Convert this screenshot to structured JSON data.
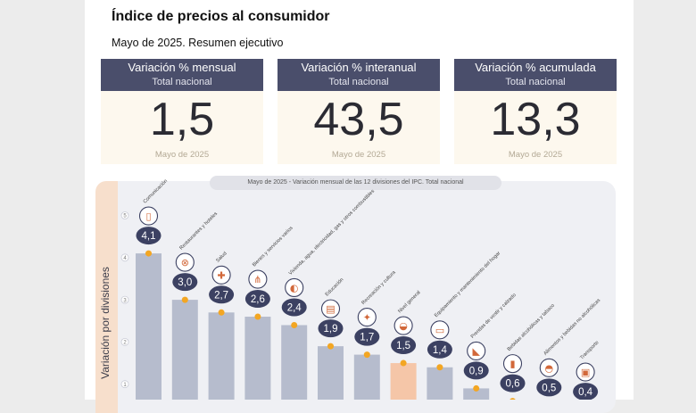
{
  "header": {
    "title": "Índice de precios al consumidor",
    "subtitle": "Mayo de 2025. Resumen ejecutivo"
  },
  "cards": [
    {
      "title": "Variación % mensual",
      "scope": "Total nacional",
      "value": "1,5",
      "period": "Mayo de 2025"
    },
    {
      "title": "Variación % interanual",
      "scope": "Total nacional",
      "value": "43,5",
      "period": "Mayo de 2025"
    },
    {
      "title": "Variación % acumulada",
      "scope": "Total nacional",
      "value": "13,3",
      "period": "Mayo de 2025"
    }
  ],
  "chart_data": {
    "type": "bar",
    "title": "Mayo de 2025 - Variación mensual de las 12 divisiones del IPC. Total nacional",
    "ylabel": "Variación por divisiones",
    "categories": [
      "Comunicación",
      "Restaurantes y hoteles",
      "Salud",
      "Bienes y servicios varios",
      "Vivienda, agua, electricidad, gas y otros combustibles",
      "Educación",
      "Recreación y cultura",
      "Nivel general",
      "Equipamiento y mantenimiento del hogar",
      "Prendas de vestir y calzado",
      "Bebidas alcohólicas y tabaco",
      "Alimentos y bebidas no alcohólicas",
      "Transporte"
    ],
    "values": [
      4.1,
      3.0,
      2.7,
      2.6,
      2.4,
      1.9,
      1.7,
      1.5,
      1.4,
      0.9,
      0.6,
      0.5,
      0.4
    ],
    "value_labels": [
      "4,1",
      "3,0",
      "2,7",
      "2,6",
      "2,4",
      "1,9",
      "1,7",
      "1,5",
      "1,4",
      "0,9",
      "0,6",
      "0,5",
      "0,4"
    ],
    "icons": [
      "phone-icon",
      "dining-icon",
      "first-aid-icon",
      "comb-icon",
      "bulb-icon",
      "book-icon",
      "theater-icon",
      "basket-icon",
      "sofa-icon",
      "shoe-icon",
      "bottle-icon",
      "bread-icon",
      "bus-icon"
    ],
    "highlight_index": 7,
    "ytick_labels": [
      "1",
      "2",
      "3",
      "4",
      "5"
    ],
    "ylim": [
      0,
      5
    ],
    "colors": {
      "bar": "#b6bccd",
      "highlight": "#f5c6a8",
      "badge": "#3c4162",
      "marker": "#f3a623"
    }
  }
}
